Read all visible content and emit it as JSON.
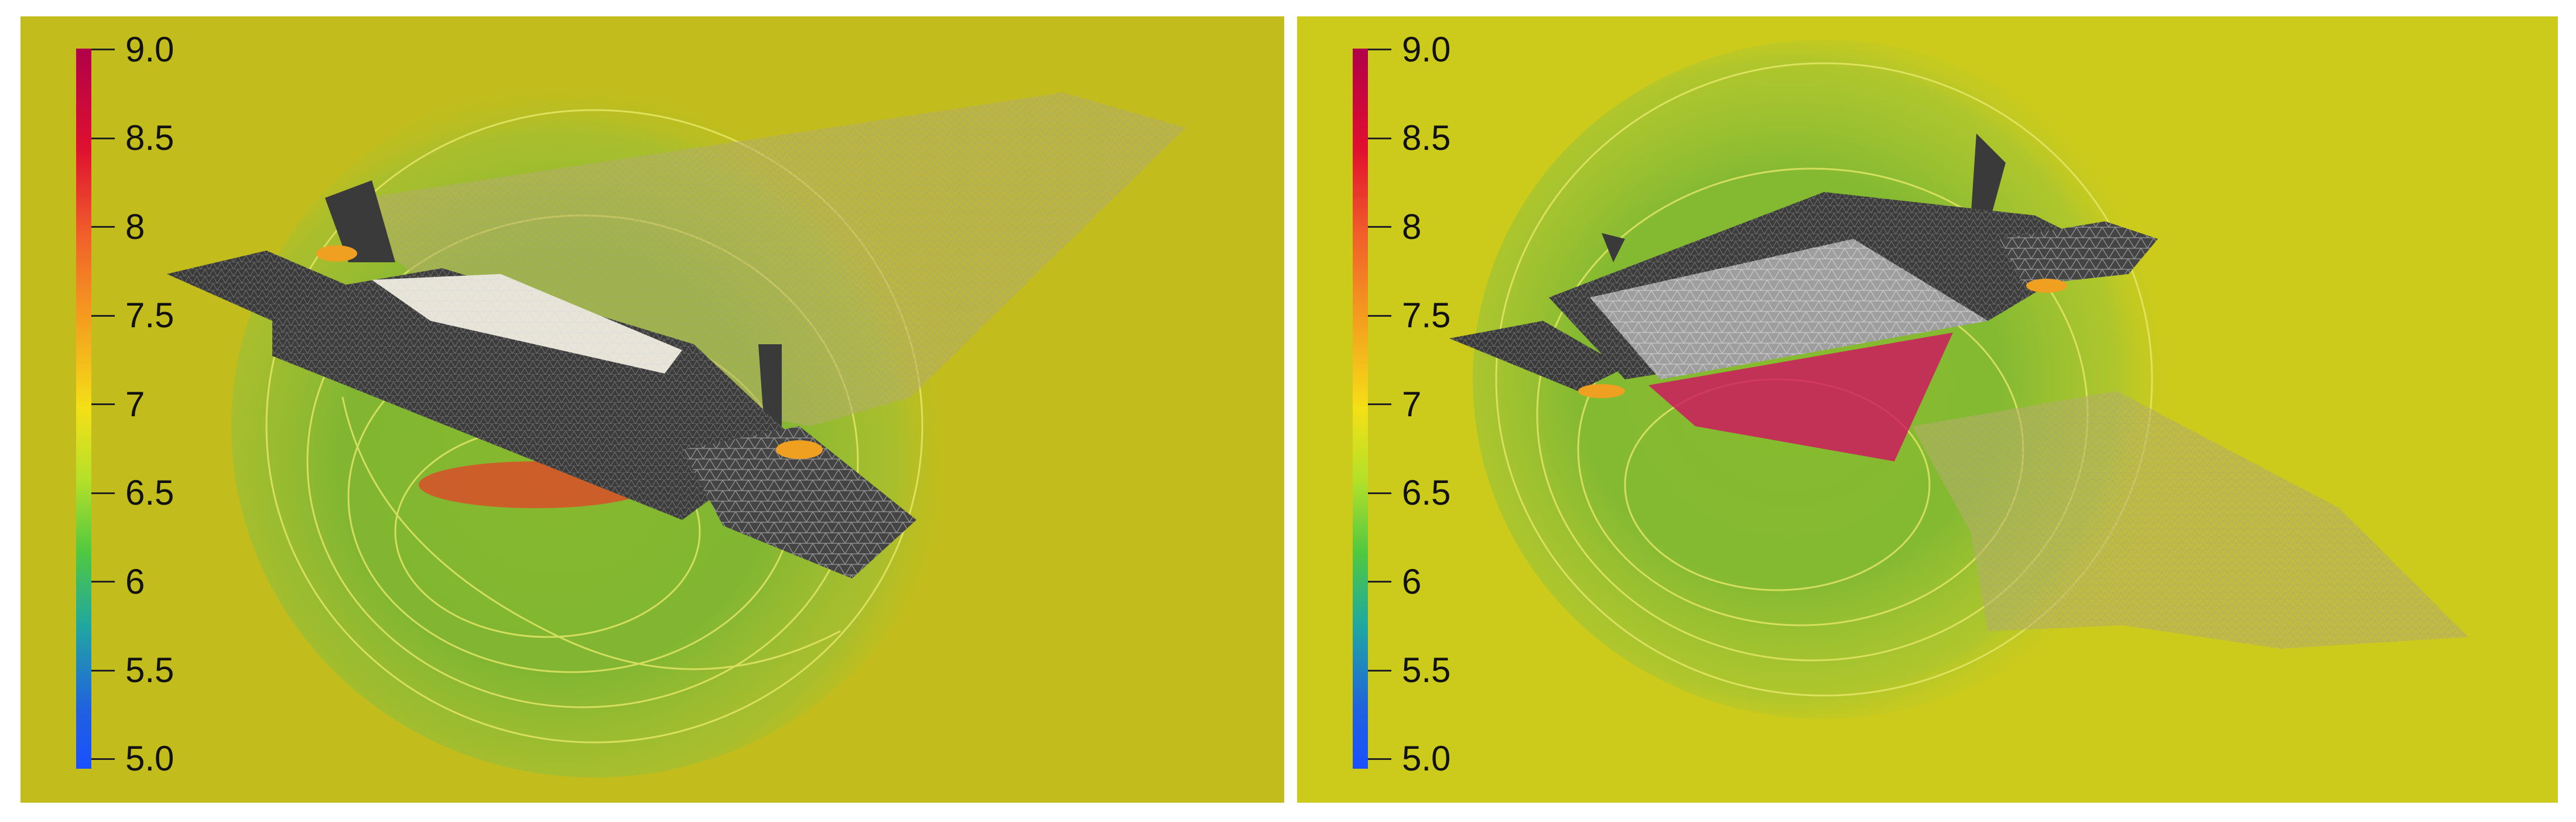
{
  "panels": [
    {
      "colorbar": {
        "min_label": "5.0",
        "max_label": "9.0",
        "ticks": [
          "9.0",
          "8.5",
          "8",
          "7.5",
          "7",
          "6.5",
          "6",
          "5.5",
          "5.0"
        ],
        "colors": [
          "#b0004a",
          "#e0102f",
          "#f0602a",
          "#f4a01e",
          "#f4e016",
          "#b4e02a",
          "#50c840",
          "#20a8a0",
          "#2060e0",
          "#1a50ff"
        ]
      }
    },
    {
      "colorbar": {
        "min_label": "5.0",
        "max_label": "9.0",
        "ticks": [
          "9.0",
          "8.5",
          "8",
          "7.5",
          "7",
          "6.5",
          "6",
          "5.5",
          "5.0"
        ],
        "colors": [
          "#b0004a",
          "#e0102f",
          "#f0602a",
          "#f4a01e",
          "#f4e016",
          "#b4e02a",
          "#50c840",
          "#20a8a0",
          "#2060e0",
          "#1a50ff"
        ]
      }
    }
  ],
  "background_color": "#c2bd1c"
}
